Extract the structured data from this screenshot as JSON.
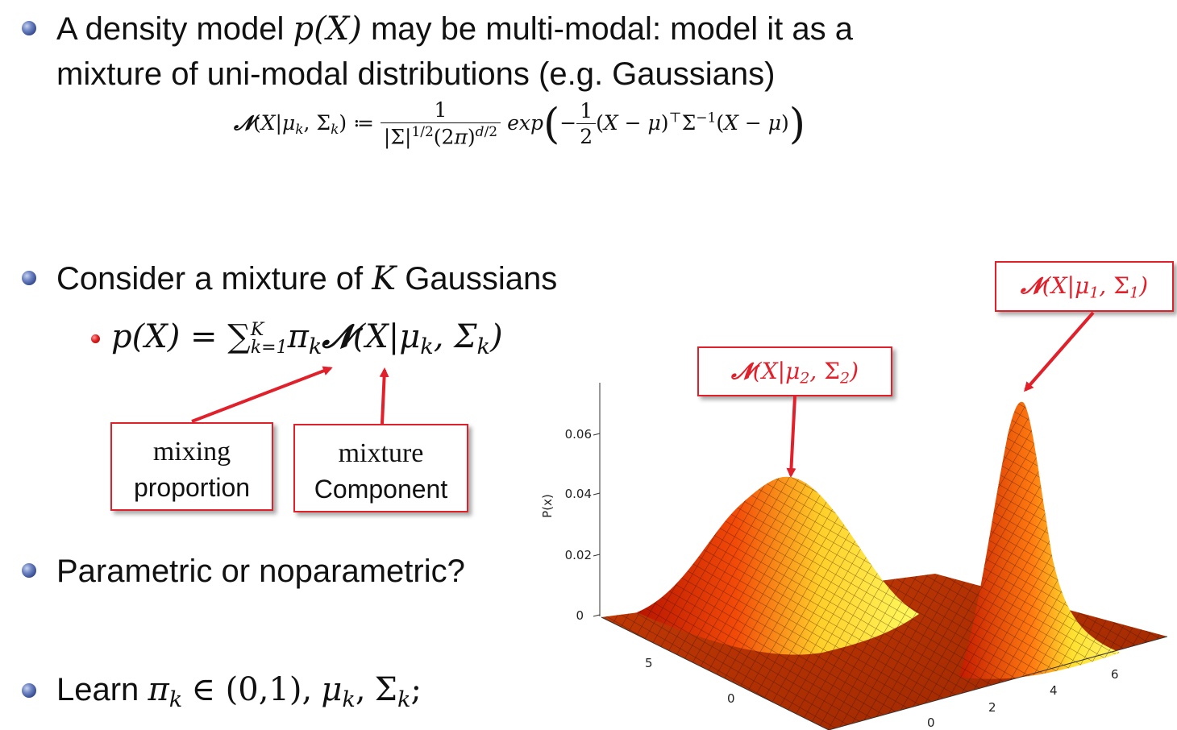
{
  "bullets": {
    "density_line1_a": "A density model",
    "density_math": "p(X)",
    "density_line1_b": "may be multi-modal: model it as a",
    "density_line2": "mixture of uni-modal distributions (e.g. Gaussians)",
    "consider_a": "Consider a mixture of",
    "consider_K": "K",
    "consider_b": "Gaussians",
    "parametric": "Parametric or noparametric?",
    "learn_label": "Learn"
  },
  "labels": {
    "mixing_line1": "mixing",
    "mixing_line2": "proportion",
    "mixture_line1": "mixture",
    "mixture_line2": "Component"
  },
  "plot": {
    "ylabel": "P(x)",
    "z_ticks": [
      "0",
      "0.02",
      "0.04",
      "0.06"
    ],
    "x_ticks": [
      "5",
      "0"
    ],
    "y_ticks": [
      "0",
      "2",
      "4",
      "6"
    ]
  },
  "colors": {
    "accent": "#e0202a",
    "bullet": "#3a4f9a"
  }
}
